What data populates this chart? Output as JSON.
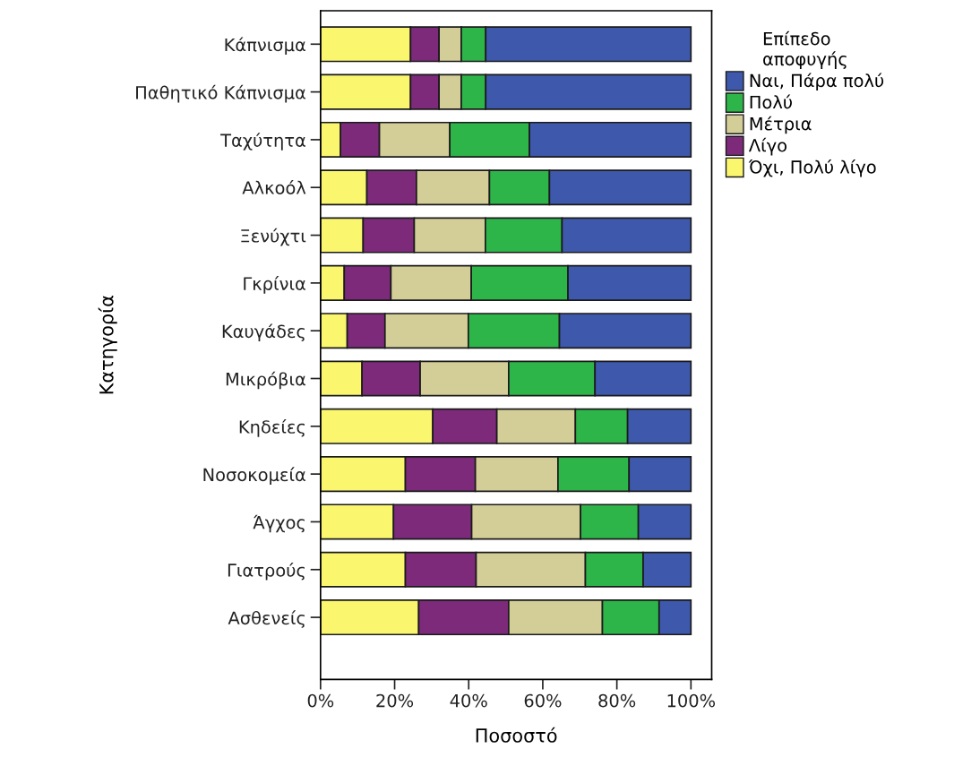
{
  "chart_data": {
    "type": "bar",
    "orientation": "horizontal",
    "stacked": true,
    "xlabel": "Ποσοστό",
    "ylabel": "Κατηγορία",
    "legend_title": "Επίπεδο\nαποφυγής",
    "legend": "right",
    "grid": false,
    "categories": [
      "Κάπνισμα",
      "Παθητικό Κάπνισμα",
      "Ταχύτητα",
      "Αλκοόλ",
      "Ξενύχτι",
      "Γκρίνια",
      "Καυγάδες",
      "Μικρόβια",
      "Κηδείες",
      "Νοσοκομεία",
      "Άγχος",
      "Γιατρούς",
      "Ασθενείς"
    ],
    "xlim": [
      0,
      105.6
    ],
    "xticks": [
      {
        "value": 0,
        "label": "0%"
      },
      {
        "value": 20,
        "label": "20%"
      },
      {
        "value": 40,
        "label": "40%"
      },
      {
        "value": 60,
        "label": "60%"
      },
      {
        "value": 80,
        "label": "80%"
      },
      {
        "value": 100,
        "label": "100%"
      }
    ],
    "series": [
      {
        "name": "Όχι, Πολύ λίγο",
        "color": "#faf76f",
        "values": [
          24.3,
          24.3,
          5.4,
          12.5,
          11.5,
          6.4,
          7.2,
          11.2,
          30.3,
          22.9,
          19.7,
          22.9,
          26.5
        ]
      },
      {
        "name": "Λίγο",
        "color": "#7d2a7b",
        "values": [
          7.7,
          7.7,
          10.5,
          13.4,
          13.8,
          12.6,
          10.2,
          15.7,
          17.3,
          18.9,
          21.1,
          19.1,
          24.3
        ]
      },
      {
        "name": "Μέτρια",
        "color": "#d3ce97",
        "values": [
          6.0,
          6.0,
          19.0,
          19.7,
          19.2,
          21.7,
          22.5,
          23.9,
          21.2,
          22.3,
          29.4,
          29.5,
          25.3
        ]
      },
      {
        "name": "Πολύ",
        "color": "#2db54a",
        "values": [
          6.6,
          6.6,
          21.5,
          16.2,
          20.7,
          26.1,
          24.6,
          23.3,
          14.1,
          19.2,
          15.6,
          15.6,
          15.3
        ]
      },
      {
        "name": "Ναι, Πάρα πολύ",
        "color": "#3e58ac",
        "values": [
          55.4,
          55.4,
          43.6,
          38.2,
          34.8,
          33.2,
          35.5,
          25.9,
          17.1,
          16.7,
          14.2,
          12.9,
          8.6
        ]
      }
    ]
  }
}
